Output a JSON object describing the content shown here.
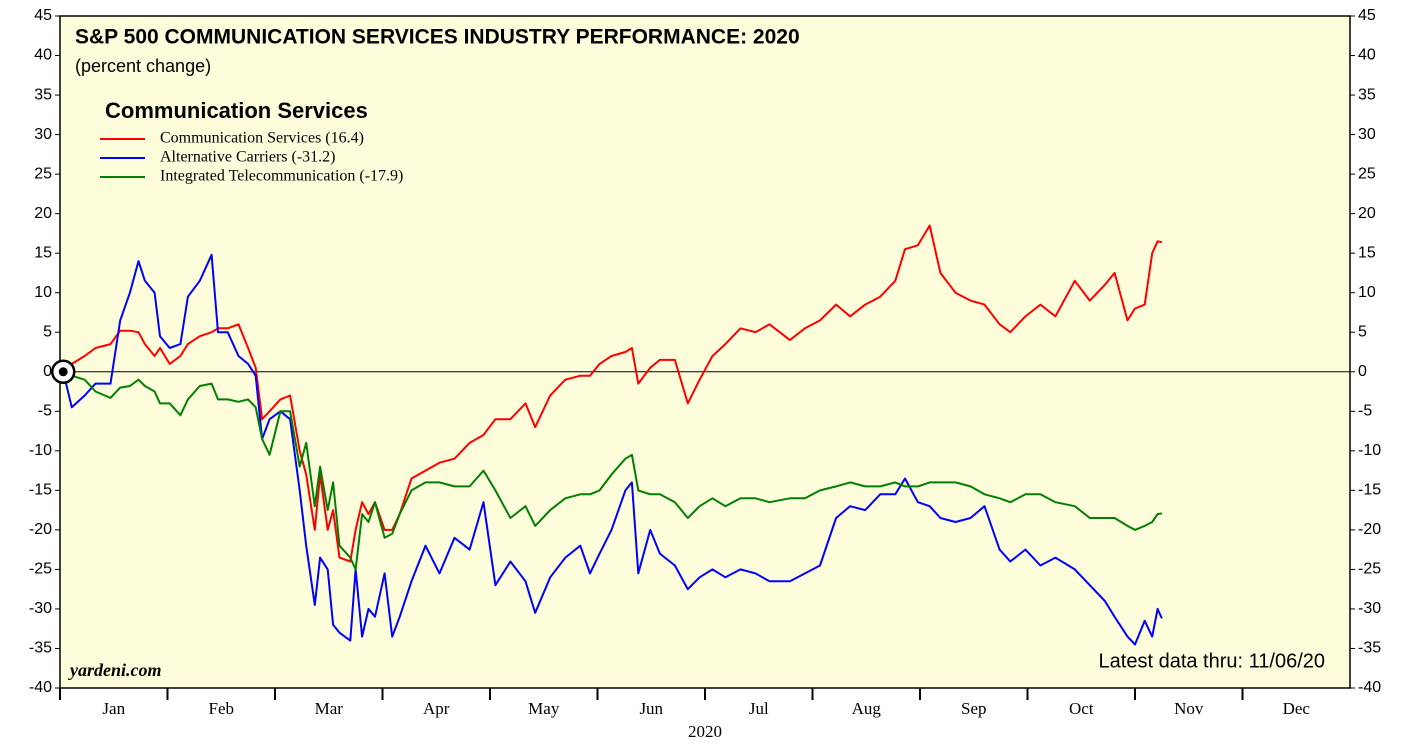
{
  "chart_data": {
    "type": "line",
    "title": "S&P 500 COMMUNICATION SERVICES INDUSTRY PERFORMANCE: 2020",
    "subtitle": "(percent change)",
    "legend_title": "Communication Services",
    "xlabel": "2020",
    "source": "yardeni.com",
    "note": "Latest data thru: 11/06/20",
    "background": "#fdfddc",
    "grid": false,
    "zero_line": true,
    "xlim": [
      0,
      12
    ],
    "xticks": [
      {
        "value": 0,
        "label": "Jan"
      },
      {
        "value": 1,
        "label": "Feb"
      },
      {
        "value": 2,
        "label": "Mar"
      },
      {
        "value": 3,
        "label": "Apr"
      },
      {
        "value": 4,
        "label": "May"
      },
      {
        "value": 5,
        "label": "Jun"
      },
      {
        "value": 6,
        "label": "Jul"
      },
      {
        "value": 7,
        "label": "Aug"
      },
      {
        "value": 8,
        "label": "Sep"
      },
      {
        "value": 9,
        "label": "Oct"
      },
      {
        "value": 10,
        "label": "Nov"
      },
      {
        "value": 11,
        "label": "Dec"
      }
    ],
    "ylim": [
      -40,
      45
    ],
    "yticks": [
      -40,
      -35,
      -30,
      -25,
      -20,
      -15,
      -10,
      -5,
      0,
      5,
      10,
      15,
      20,
      25,
      30,
      35,
      40,
      45
    ],
    "x": [
      0.03,
      0.11,
      0.23,
      0.33,
      0.47,
      0.56,
      0.65,
      0.73,
      0.79,
      0.88,
      0.93,
      1.02,
      1.12,
      1.19,
      1.3,
      1.41,
      1.47,
      1.56,
      1.66,
      1.75,
      1.82,
      1.88,
      1.95,
      2.05,
      2.14,
      2.23,
      2.29,
      2.37,
      2.42,
      2.49,
      2.54,
      2.6,
      2.7,
      2.75,
      2.81,
      2.87,
      2.93,
      3.02,
      3.09,
      3.16,
      3.27,
      3.4,
      3.53,
      3.67,
      3.81,
      3.94,
      4.05,
      4.19,
      4.33,
      4.42,
      4.56,
      4.7,
      4.84,
      4.93,
      5.02,
      5.13,
      5.26,
      5.32,
      5.38,
      5.49,
      5.58,
      5.72,
      5.84,
      5.95,
      6.07,
      6.19,
      6.33,
      6.47,
      6.6,
      6.79,
      6.93,
      7.07,
      7.22,
      7.35,
      7.49,
      7.63,
      7.77,
      7.86,
      7.98,
      8.09,
      8.19,
      8.33,
      8.47,
      8.6,
      8.74,
      8.84,
      8.98,
      9.12,
      9.26,
      9.44,
      9.58,
      9.72,
      9.81,
      9.93,
      10.0,
      10.09,
      10.16,
      10.21,
      10.25
    ],
    "series": [
      {
        "name": "Communication Services (16.4)",
        "color": "#ff0000",
        "values": [
          0,
          1,
          2,
          3,
          3.5,
          5.2,
          5.2,
          5,
          3.5,
          2,
          3,
          1,
          2,
          3.5,
          4.5,
          5,
          5.5,
          5.5,
          6,
          3,
          0.5,
          -6,
          -5,
          -3.5,
          -3,
          -10,
          -13,
          -20,
          -13,
          -20,
          -17.5,
          -23.5,
          -24,
          -20,
          -16.5,
          -18,
          -16.5,
          -20,
          -20,
          -18,
          -13.5,
          -12.5,
          -11.5,
          -11,
          -9,
          -8,
          -6,
          -6,
          -4,
          -7,
          -3,
          -1,
          -0.5,
          -0.5,
          1,
          2,
          2.5,
          3,
          -1.5,
          0.5,
          1.5,
          1.5,
          -4,
          -1,
          2,
          3.5,
          5.5,
          5,
          6,
          4,
          5.5,
          6.5,
          8.5,
          7,
          8.5,
          9.5,
          11.5,
          15.5,
          16,
          18.5,
          12.5,
          10,
          9,
          8.5,
          6,
          5,
          7,
          8.5,
          7,
          11.5,
          9,
          11,
          12.5,
          6.5,
          8,
          8.5,
          15,
          16.5,
          16.4
        ]
      },
      {
        "name": "Alternative Carriers (-31.2)",
        "color": "#0000ff",
        "values": [
          0,
          -4.5,
          -3,
          -1.5,
          -1.5,
          6.5,
          10,
          14,
          11.5,
          10,
          4.5,
          3,
          3.5,
          9.5,
          11.5,
          14.8,
          5,
          5,
          2,
          1,
          -0.5,
          -8.5,
          -6,
          -5,
          -6,
          -15,
          -22,
          -29.5,
          -23.5,
          -25,
          -32,
          -33,
          -34,
          -25,
          -33.5,
          -30,
          -31,
          -25.5,
          -33.5,
          -31,
          -26.5,
          -22,
          -25.5,
          -21,
          -22.5,
          -16.5,
          -27,
          -24,
          -26.5,
          -30.5,
          -26,
          -23.5,
          -22,
          -25.5,
          -23,
          -20,
          -15,
          -14,
          -25.5,
          -20,
          -23,
          -24.5,
          -27.5,
          -26,
          -25,
          -26,
          -25,
          -25.5,
          -26.5,
          -26.5,
          -25.5,
          -24.5,
          -18.5,
          -17,
          -17.5,
          -15.5,
          -15.5,
          -13.5,
          -16.5,
          -17,
          -18.5,
          -19,
          -18.5,
          -17,
          -22.5,
          -24,
          -22.5,
          -24.5,
          -23.5,
          -25,
          -27,
          -29,
          -31,
          -33.5,
          -34.5,
          -31.5,
          -33.5,
          -30,
          -31.2
        ]
      },
      {
        "name": "Integrated Telecommunication (-17.9)",
        "color": "#008000",
        "values": [
          0,
          -0.5,
          -1,
          -2.5,
          -3.3,
          -2,
          -1.8,
          -1,
          -1.8,
          -2.5,
          -4,
          -4,
          -5.5,
          -3.5,
          -1.8,
          -1.5,
          -3.5,
          -3.5,
          -3.8,
          -3.5,
          -4.5,
          -8.5,
          -10.5,
          -5,
          -5,
          -12,
          -9,
          -17,
          -12,
          -17.5,
          -14,
          -22,
          -23.5,
          -25,
          -18,
          -19,
          -16.5,
          -21,
          -20.5,
          -18,
          -15,
          -14,
          -14,
          -14.5,
          -14.5,
          -12.5,
          -15,
          -18.5,
          -17,
          -19.5,
          -17.5,
          -16,
          -15.5,
          -15.5,
          -15,
          -13,
          -11,
          -10.5,
          -15,
          -15.5,
          -15.5,
          -16.5,
          -18.5,
          -17,
          -16,
          -17,
          -16,
          -16,
          -16.5,
          -16,
          -16,
          -15,
          -14.5,
          -14,
          -14.5,
          -14.5,
          -14,
          -14.5,
          -14.5,
          -14,
          -14,
          -14,
          -14.5,
          -15.5,
          -16,
          -16.5,
          -15.5,
          -15.5,
          -16.5,
          -17,
          -18.5,
          -18.5,
          -18.5,
          -19.5,
          -20,
          -19.5,
          -19,
          -18,
          -17.9
        ]
      }
    ]
  }
}
